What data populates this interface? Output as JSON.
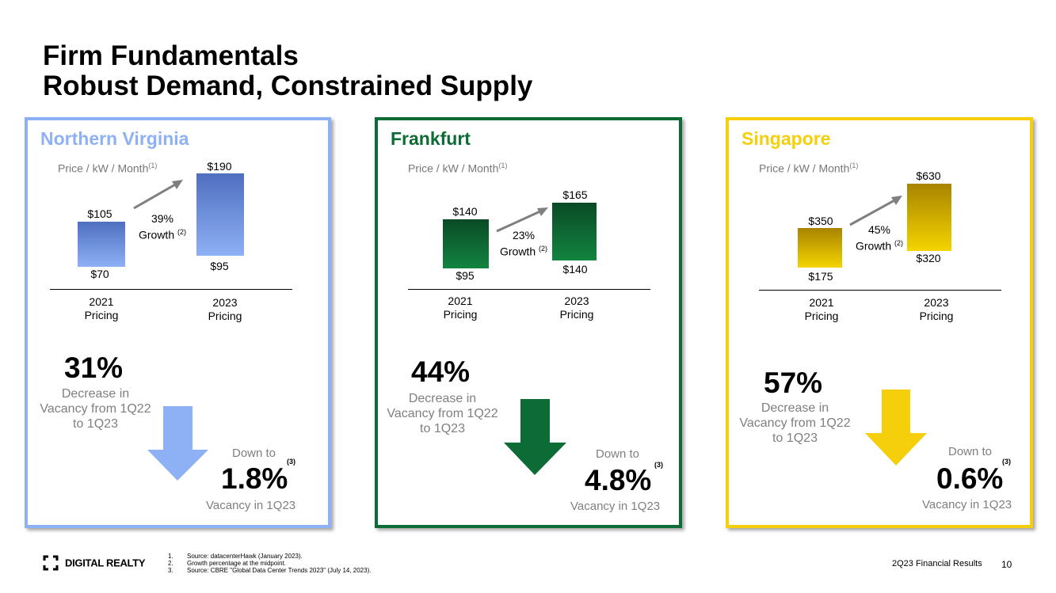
{
  "title": {
    "line1": "Firm Fundamentals",
    "line2": "Robust Demand, Constrained Supply"
  },
  "panels": [
    {
      "city": "Northern Virginia",
      "price_label": "Price / kW / Month",
      "price_note": "(1)",
      "bar2021": {
        "high": "$105",
        "low": "$70"
      },
      "bar2023": {
        "high": "$190",
        "low": "$95"
      },
      "growth_pct": "39%",
      "growth_word": "Growth",
      "growth_note": "(2)",
      "x2021": {
        "year": "2021",
        "word": "Pricing"
      },
      "x2023": {
        "year": "2023",
        "word": "Pricing"
      },
      "decrease_pct": "31%",
      "decrease_text": [
        "Decrease in",
        "Vacancy from 1Q22",
        "to 1Q23"
      ],
      "down_to": "Down to",
      "vacancy_note": "(3)",
      "vacancy_value": "1.8%",
      "vacancy_label": "Vacancy in 1Q23",
      "colors": {
        "accent": "#8eb0f5",
        "bar_top": "#4f6fbf",
        "bar_bottom": "#8eb0f5"
      }
    },
    {
      "city": "Frankfurt",
      "price_label": "Price / kW / Month",
      "price_note": "(1)",
      "bar2021": {
        "high": "$140",
        "low": "$95"
      },
      "bar2023": {
        "high": "$165",
        "low": "$140"
      },
      "growth_pct": "23%",
      "growth_word": "Growth",
      "growth_note": "(2)",
      "x2021": {
        "year": "2021",
        "word": "Pricing"
      },
      "x2023": {
        "year": "2023",
        "word": "Pricing"
      },
      "decrease_pct": "44%",
      "decrease_text": [
        "Decrease in",
        "Vacancy from 1Q22",
        "to 1Q23"
      ],
      "down_to": "Down to",
      "vacancy_note": "(3)",
      "vacancy_value": "4.8%",
      "vacancy_label": "Vacancy in 1Q23",
      "colors": {
        "accent": "#0d6b35",
        "bar_top": "#0a4a26",
        "bar_bottom": "#12843f"
      }
    },
    {
      "city": "Singapore",
      "price_label": "Price / kW / Month",
      "price_note": "(1)",
      "bar2021": {
        "high": "$350",
        "low": "$175"
      },
      "bar2023": {
        "high": "$630",
        "low": "$320"
      },
      "growth_pct": "45%",
      "growth_word": "Growth",
      "growth_note": "(2)",
      "x2021": {
        "year": "2021",
        "word": "Pricing"
      },
      "x2023": {
        "year": "2023",
        "word": "Pricing"
      },
      "decrease_pct": "57%",
      "decrease_text": [
        "Decrease in",
        "Vacancy from 1Q22",
        "to 1Q23"
      ],
      "down_to": "Down to",
      "vacancy_note": "(3)",
      "vacancy_value": "0.6%",
      "vacancy_label": "Vacancy in 1Q23",
      "colors": {
        "accent": "#f5cf0b",
        "bar_top": "#a88400",
        "bar_bottom": "#f5d400"
      }
    }
  ],
  "footnotes": [
    {
      "num": "1.",
      "text": "Source: datacenterHawk (January 2023)."
    },
    {
      "num": "2.",
      "text": "Growth percentage at the midpoint."
    },
    {
      "num": "3.",
      "text": "Source: CBRE \"Global Data Center Trends 2023\" (July 14, 2023)."
    }
  ],
  "brand": {
    "name": "DIGITAL REALTY",
    "icon": "bracket-logo-icon"
  },
  "footer": {
    "label": "2Q23 Financial Results",
    "page": "10"
  }
}
